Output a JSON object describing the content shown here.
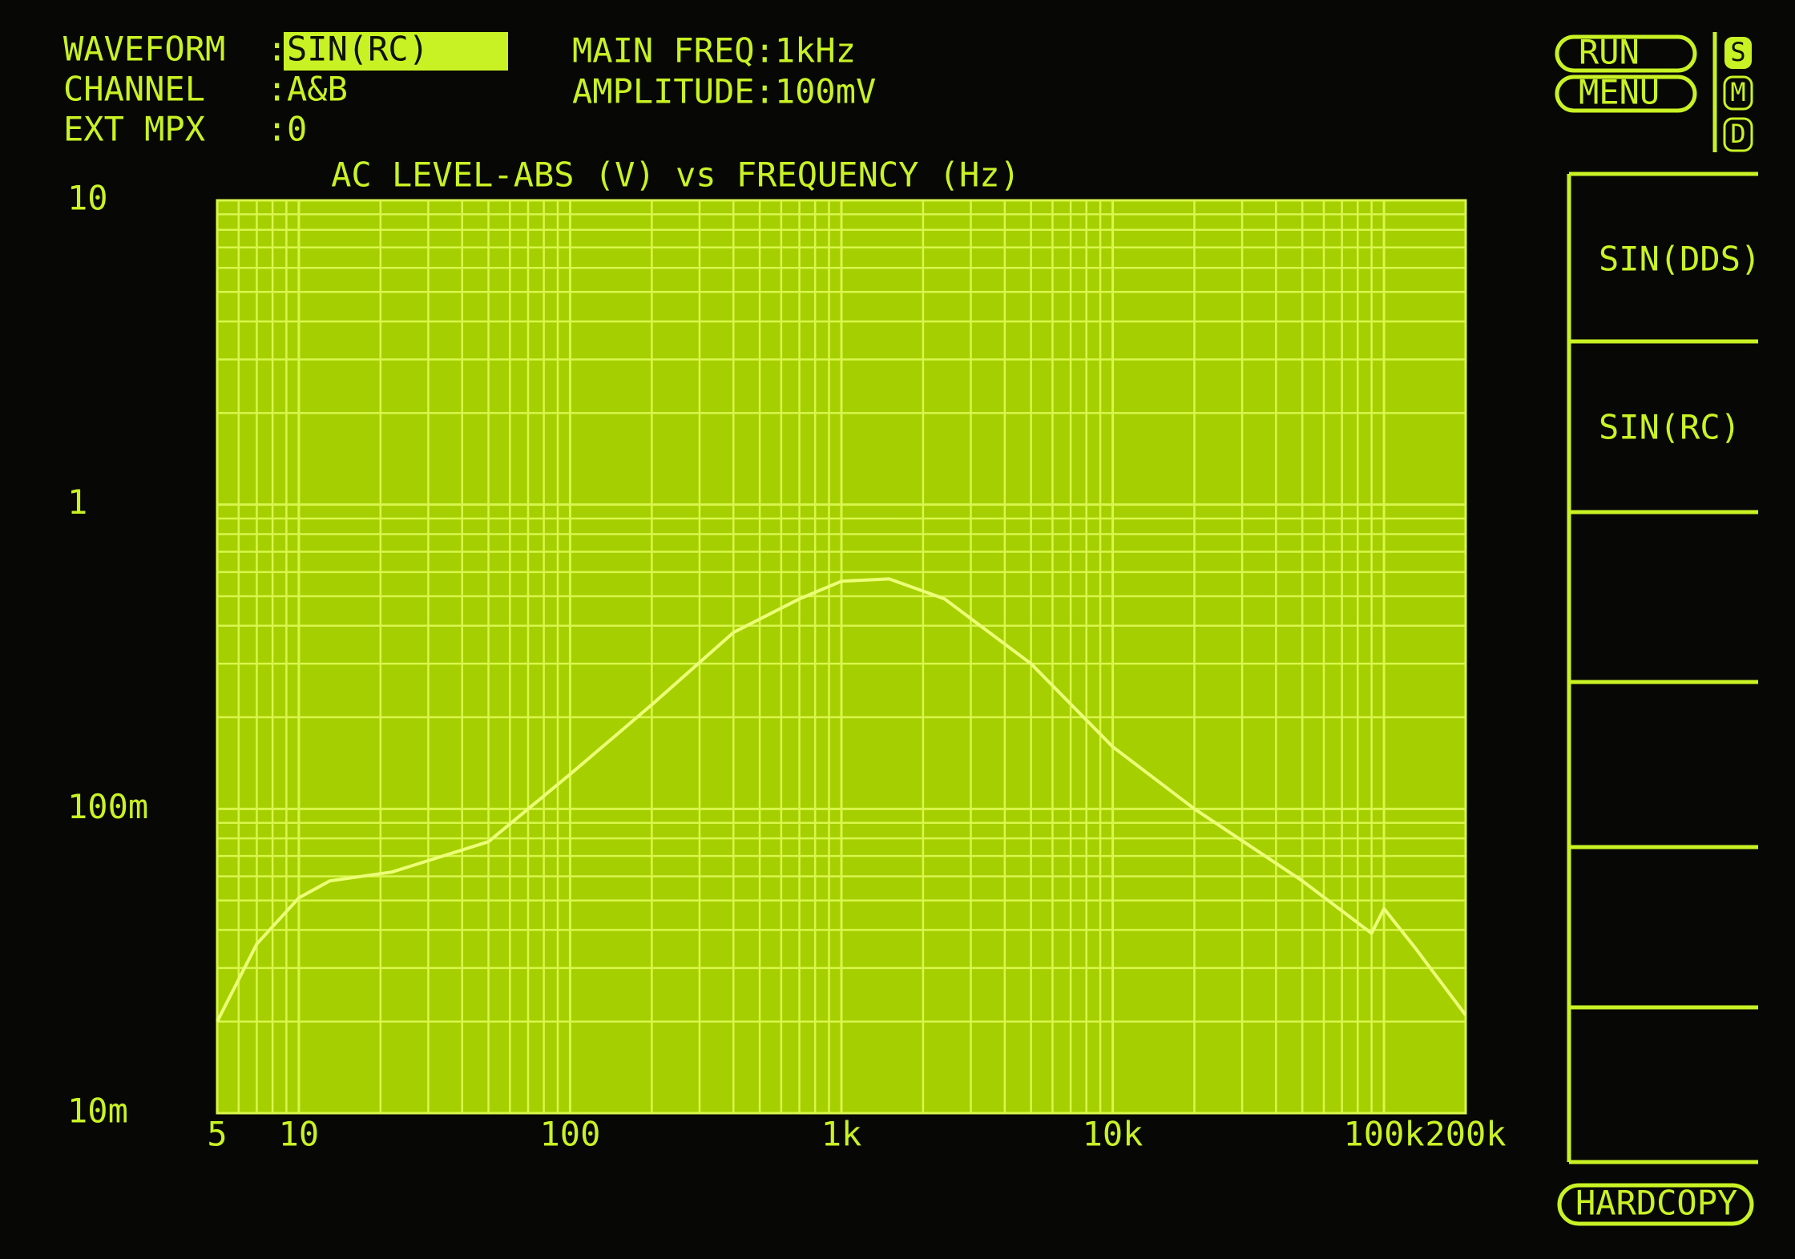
{
  "status": {
    "separator": ":",
    "rows": [
      {
        "label": "WAVEFORM",
        "value": "SIN(RC)"
      },
      {
        "label": "CHANNEL",
        "value": "A&B"
      },
      {
        "label": "EXT MPX",
        "value": "0"
      }
    ],
    "main_freq": "MAIN FREQ:1kHz",
    "amplitude": "AMPLITUDE:100mV"
  },
  "buttons": {
    "run": "RUN",
    "menu": "MENU",
    "modes": [
      "S",
      "M",
      "D"
    ],
    "hardcopy": "HARDCOPY"
  },
  "softkeys": [
    "SIN(DDS)",
    "SIN(RC)"
  ],
  "chart_data": {
    "type": "line",
    "title": "AC LEVEL-ABS (V) vs FREQUENCY (Hz)",
    "x": [
      5,
      7,
      10,
      13,
      22,
      50,
      100,
      200,
      400,
      700,
      1000,
      1500,
      2400,
      5000,
      10000,
      20000,
      50000,
      90000,
      100000,
      130000,
      200000
    ],
    "series": [
      {
        "color": "#ecff78",
        "values": [
          0.02,
          0.036,
          0.051,
          0.058,
          0.062,
          0.078,
          0.13,
          0.22,
          0.38,
          0.49,
          0.56,
          0.57,
          0.49,
          0.3,
          0.16,
          0.1,
          0.058,
          0.039,
          0.047,
          0.035,
          0.021
        ]
      }
    ],
    "xlim": [
      5,
      200000
    ],
    "ylim": [
      0.01,
      10
    ],
    "log_x": true,
    "log_y": true,
    "grid": true,
    "xticks": [
      5,
      10,
      100,
      {
        "value": 1000,
        "label": "1k"
      },
      {
        "value": 10000,
        "label": "10k"
      },
      {
        "value": 100000,
        "label": "100k"
      },
      {
        "value": 200000,
        "label": "200k"
      }
    ],
    "yticks": [
      {
        "value": 0.01,
        "label": "10m"
      },
      {
        "value": 0.1,
        "label": "100m"
      },
      1,
      10
    ]
  }
}
